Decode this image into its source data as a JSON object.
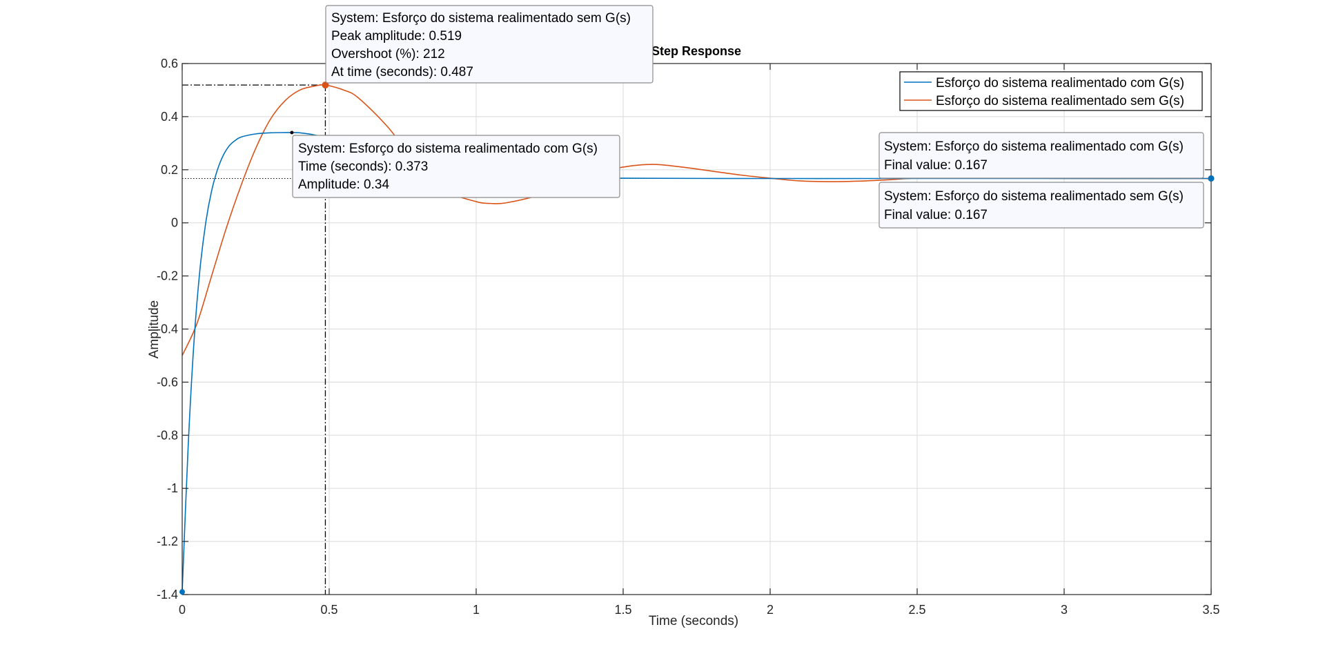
{
  "chart_data": {
    "type": "line",
    "title": "Step Response",
    "xlabel": "Time (seconds)",
    "ylabel": "Amplitude",
    "xlim": [
      0,
      3.5
    ],
    "ylim": [
      -1.4,
      0.6
    ],
    "xticks": [
      0,
      0.5,
      1,
      1.5,
      2,
      2.5,
      3,
      3.5
    ],
    "xtick_labels": [
      "0",
      "0.5",
      "1",
      "1.5",
      "2",
      "2.5",
      "3",
      "3.5"
    ],
    "yticks": [
      -1.4,
      -1.2,
      -1,
      -0.8,
      -0.6,
      -0.4,
      -0.2,
      0,
      0.2,
      0.4,
      0.6
    ],
    "ytick_labels": [
      "-1.4",
      "-1.2",
      "-1",
      "-0.8",
      "-0.6",
      "-0.4",
      "-0.2",
      "0",
      "0.2",
      "0.4",
      "0.6"
    ],
    "grid": true,
    "legend_position": "top-right",
    "series": [
      {
        "name": "Esforço do sistema realimentado com G(s)",
        "color": "#0072BD",
        "x": [
          0,
          0.02,
          0.04,
          0.06,
          0.08,
          0.1,
          0.12,
          0.14,
          0.16,
          0.18,
          0.2,
          0.25,
          0.3,
          0.35,
          0.373,
          0.4,
          0.45,
          0.5,
          0.6,
          0.7,
          0.8,
          1.0,
          1.2,
          1.5,
          2.0,
          2.5,
          3.0,
          3.5
        ],
        "y": [
          -1.39,
          -0.85,
          -0.45,
          -0.18,
          0.0,
          0.12,
          0.2,
          0.255,
          0.29,
          0.31,
          0.323,
          0.335,
          0.339,
          0.34,
          0.34,
          0.339,
          0.331,
          0.316,
          0.28,
          0.245,
          0.215,
          0.185,
          0.172,
          0.168,
          0.167,
          0.167,
          0.167,
          0.167
        ]
      },
      {
        "name": "Esforço do sistema realimentado sem G(s)",
        "color": "#D95319",
        "x": [
          0,
          0.05,
          0.1,
          0.15,
          0.2,
          0.25,
          0.3,
          0.35,
          0.4,
          0.45,
          0.487,
          0.55,
          0.6,
          0.7,
          0.8,
          0.9,
          1.0,
          1.05,
          1.1,
          1.2,
          1.3,
          1.4,
          1.5,
          1.6,
          1.7,
          1.8,
          1.9,
          2.0,
          2.1,
          2.2,
          2.3,
          2.4,
          2.5,
          2.7,
          3.0,
          3.5
        ],
        "y": [
          -0.5,
          -0.38,
          -0.2,
          -0.02,
          0.14,
          0.28,
          0.39,
          0.46,
          0.5,
          0.515,
          0.519,
          0.5,
          0.47,
          0.36,
          0.22,
          0.12,
          0.08,
          0.073,
          0.075,
          0.1,
          0.14,
          0.185,
          0.21,
          0.22,
          0.21,
          0.195,
          0.18,
          0.168,
          0.158,
          0.155,
          0.157,
          0.162,
          0.168,
          0.17,
          0.167,
          0.167
        ]
      }
    ],
    "annotations": {
      "peak_sem": {
        "lines": [
          "System: Esforço do sistema realimentado sem G(s)",
          "Peak amplitude: 0.519",
          "Overshoot (%): 212",
          "At time (seconds): 0.487"
        ],
        "x": 0.487,
        "y": 0.519,
        "color": "#D95319"
      },
      "point_com": {
        "lines": [
          "System: Esforço do sistema realimentado com G(s)",
          "Time (seconds): 0.373",
          "Amplitude: 0.34"
        ],
        "x": 0.373,
        "y": 0.34,
        "color": "#000000"
      },
      "final_com": {
        "lines": [
          "System: Esforço do sistema realimentado com G(s)",
          "Final value: 0.167"
        ],
        "x": 3.5,
        "y": 0.167,
        "color": "#0072BD"
      },
      "final_sem": {
        "lines": [
          "System: Esforço do sistema realimentado sem G(s)",
          "Final value: 0.167"
        ],
        "x": 3.5,
        "y": 0.167,
        "color": "#D95319"
      },
      "start_com": {
        "x": 0,
        "y": -1.39,
        "color": "#0072BD"
      }
    }
  }
}
